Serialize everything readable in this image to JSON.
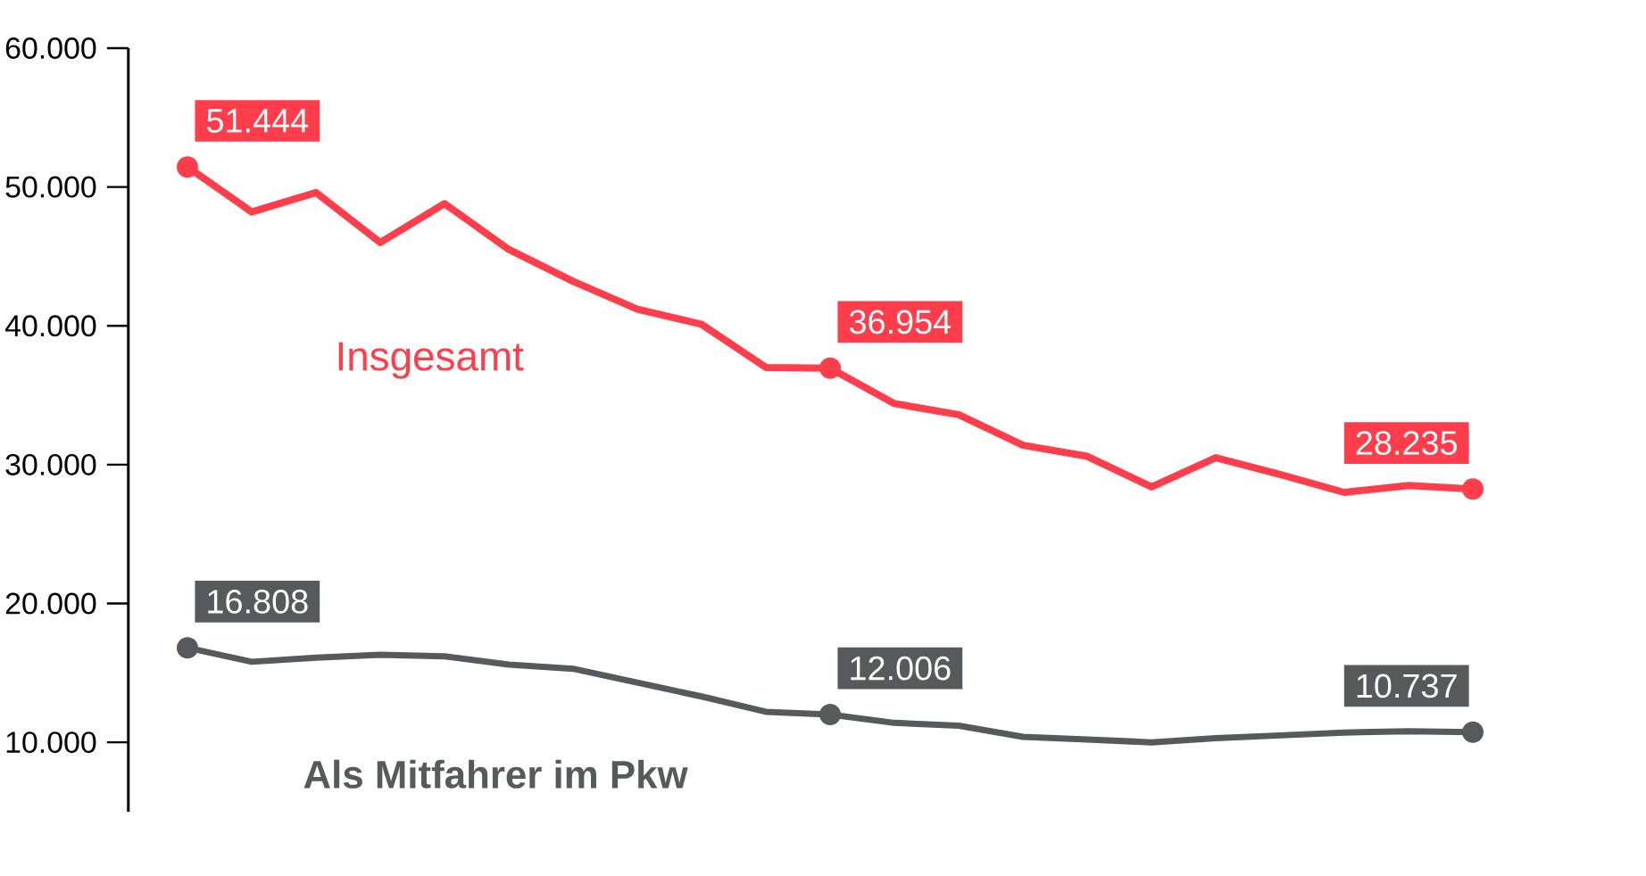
{
  "chart_data": {
    "type": "line",
    "categories": [
      null,
      null,
      null,
      null,
      null,
      null,
      null,
      null,
      null,
      null,
      null,
      null,
      null,
      null,
      null,
      null,
      null,
      null,
      null,
      null,
      null
    ],
    "series": [
      {
        "name": "Insgesamt",
        "color": "#ff3d4b",
        "values": [
          51444,
          48200,
          49600,
          46000,
          48800,
          45500,
          43200,
          41200,
          40100,
          37000,
          36954,
          34400,
          33600,
          31400,
          30600,
          28400,
          30500,
          29300,
          28000,
          28500,
          28235
        ],
        "value_labels": [
          "51.444",
          null,
          null,
          null,
          null,
          null,
          null,
          null,
          null,
          null,
          "36.954",
          null,
          null,
          null,
          null,
          null,
          null,
          null,
          null,
          null,
          "28.235"
        ]
      },
      {
        "name": "Als Mitfahrer im Pkw",
        "color": "#58595b",
        "values": [
          16808,
          15800,
          16100,
          16300,
          16200,
          15600,
          15300,
          14300,
          13300,
          12200,
          12006,
          11400,
          11200,
          10400,
          10200,
          10000,
          10300,
          10500,
          10700,
          10800,
          10737
        ],
        "value_labels": [
          "16.808",
          null,
          null,
          null,
          null,
          null,
          null,
          null,
          null,
          null,
          "12.006",
          null,
          null,
          null,
          null,
          null,
          null,
          null,
          null,
          null,
          "10.737"
        ]
      }
    ],
    "ylim": [
      5000,
      60000
    ],
    "yticks": [
      {
        "value": 10000,
        "label": "10.000"
      },
      {
        "value": 20000,
        "label": "20.000"
      },
      {
        "value": 30000,
        "label": "30.000"
      },
      {
        "value": 40000,
        "label": "40.000"
      },
      {
        "value": 50000,
        "label": "50.000"
      },
      {
        "value": 60000,
        "label": "60.000"
      }
    ],
    "tick_labels": "y",
    "grid": false
  }
}
